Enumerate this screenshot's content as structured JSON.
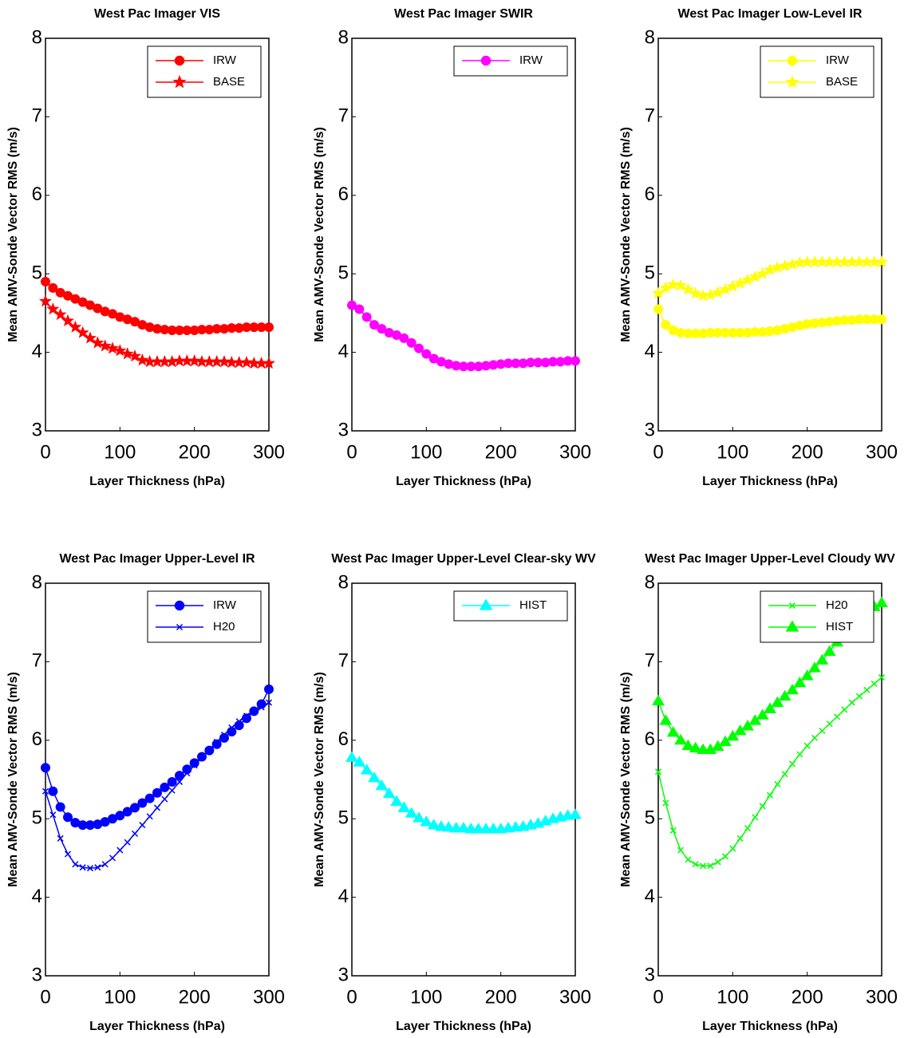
{
  "chart_data": [
    {
      "type": "line",
      "title": "West Pac Imager VIS",
      "xlabel": "Layer Thickness (hPa)",
      "ylabel": "Mean AMV-Sonde Vector RMS (m/s)",
      "x": [
        0,
        10,
        20,
        30,
        40,
        50,
        60,
        70,
        80,
        90,
        100,
        110,
        120,
        130,
        140,
        150,
        160,
        170,
        180,
        190,
        200,
        210,
        220,
        230,
        240,
        250,
        260,
        270,
        280,
        290,
        300
      ],
      "xlim": [
        0,
        300
      ],
      "ylim": [
        3,
        8
      ],
      "xticks": [
        0,
        100,
        200,
        300
      ],
      "yticks": [
        3,
        4,
        5,
        6,
        7,
        8
      ],
      "legend": "upper right",
      "series": [
        {
          "name": "IRW",
          "color": "#ff0000",
          "marker": "circle",
          "values": [
            4.9,
            4.82,
            4.76,
            4.72,
            4.68,
            4.64,
            4.6,
            4.56,
            4.52,
            4.49,
            4.45,
            4.42,
            4.39,
            4.35,
            4.32,
            4.3,
            4.29,
            4.28,
            4.28,
            4.28,
            4.28,
            4.29,
            4.29,
            4.3,
            4.3,
            4.31,
            4.31,
            4.32,
            4.32,
            4.32,
            4.32
          ]
        },
        {
          "name": "BASE",
          "color": "#ff0000",
          "marker": "star",
          "values": [
            4.65,
            4.55,
            4.48,
            4.4,
            4.32,
            4.25,
            4.18,
            4.12,
            4.08,
            4.05,
            4.02,
            3.98,
            3.95,
            3.9,
            3.88,
            3.88,
            3.88,
            3.88,
            3.89,
            3.89,
            3.89,
            3.88,
            3.88,
            3.88,
            3.88,
            3.87,
            3.87,
            3.87,
            3.86,
            3.86,
            3.86
          ]
        }
      ]
    },
    {
      "type": "line",
      "title": "West Pac Imager SWIR",
      "xlabel": "Layer Thickness (hPa)",
      "ylabel": "Mean AMV-Sonde Vector RMS (m/s)",
      "x": [
        0,
        10,
        20,
        30,
        40,
        50,
        60,
        70,
        80,
        90,
        100,
        110,
        120,
        130,
        140,
        150,
        160,
        170,
        180,
        190,
        200,
        210,
        220,
        230,
        240,
        250,
        260,
        270,
        280,
        290,
        300
      ],
      "xlim": [
        0,
        300
      ],
      "ylim": [
        3,
        8
      ],
      "xticks": [
        0,
        100,
        200,
        300
      ],
      "yticks": [
        3,
        4,
        5,
        6,
        7,
        8
      ],
      "legend": "upper right",
      "series": [
        {
          "name": "IRW",
          "color": "#ff00ff",
          "marker": "circle",
          "values": [
            4.6,
            4.55,
            4.45,
            4.35,
            4.3,
            4.25,
            4.22,
            4.18,
            4.12,
            4.05,
            3.98,
            3.92,
            3.88,
            3.85,
            3.83,
            3.82,
            3.82,
            3.82,
            3.83,
            3.84,
            3.85,
            3.86,
            3.86,
            3.86,
            3.87,
            3.87,
            3.87,
            3.88,
            3.88,
            3.89,
            3.89
          ]
        }
      ]
    },
    {
      "type": "line",
      "title": "West Pac Imager Low-Level IR",
      "xlabel": "Layer Thickness (hPa)",
      "ylabel": "Mean AMV-Sonde Vector RMS (m/s)",
      "x": [
        0,
        10,
        20,
        30,
        40,
        50,
        60,
        70,
        80,
        90,
        100,
        110,
        120,
        130,
        140,
        150,
        160,
        170,
        180,
        190,
        200,
        210,
        220,
        230,
        240,
        250,
        260,
        270,
        280,
        290,
        300
      ],
      "xlim": [
        0,
        300
      ],
      "ylim": [
        3,
        8
      ],
      "xticks": [
        0,
        100,
        200,
        300
      ],
      "yticks": [
        3,
        4,
        5,
        6,
        7,
        8
      ],
      "legend": "upper right",
      "series": [
        {
          "name": "IRW",
          "color": "#ffff00",
          "marker": "circle",
          "values": [
            4.55,
            4.35,
            4.28,
            4.25,
            4.24,
            4.24,
            4.24,
            4.25,
            4.25,
            4.25,
            4.25,
            4.25,
            4.25,
            4.26,
            4.26,
            4.27,
            4.28,
            4.3,
            4.32,
            4.34,
            4.36,
            4.37,
            4.38,
            4.39,
            4.4,
            4.41,
            4.41,
            4.42,
            4.42,
            4.42,
            4.42
          ]
        },
        {
          "name": "BASE",
          "color": "#ffff00",
          "marker": "star",
          "values": [
            4.75,
            4.82,
            4.86,
            4.85,
            4.8,
            4.75,
            4.72,
            4.73,
            4.76,
            4.8,
            4.84,
            4.88,
            4.92,
            4.96,
            5.0,
            5.05,
            5.08,
            5.1,
            5.12,
            5.14,
            5.15,
            5.15,
            5.15,
            5.15,
            5.15,
            5.15,
            5.15,
            5.15,
            5.15,
            5.15,
            5.15
          ]
        }
      ]
    },
    {
      "type": "line",
      "title": "West Pac Imager Upper-Level IR",
      "xlabel": "Layer Thickness (hPa)",
      "ylabel": "Mean AMV-Sonde Vector RMS (m/s)",
      "x": [
        0,
        10,
        20,
        30,
        40,
        50,
        60,
        70,
        80,
        90,
        100,
        110,
        120,
        130,
        140,
        150,
        160,
        170,
        180,
        190,
        200,
        210,
        220,
        230,
        240,
        250,
        260,
        270,
        280,
        290,
        300
      ],
      "xlim": [
        0,
        300
      ],
      "ylim": [
        3,
        8
      ],
      "xticks": [
        0,
        100,
        200,
        300
      ],
      "yticks": [
        3,
        4,
        5,
        6,
        7,
        8
      ],
      "legend": "upper right",
      "series": [
        {
          "name": "IRW",
          "color": "#0000ff",
          "marker": "circle",
          "values": [
            5.65,
            5.35,
            5.15,
            5.02,
            4.95,
            4.92,
            4.92,
            4.93,
            4.96,
            5.0,
            5.04,
            5.09,
            5.14,
            5.2,
            5.26,
            5.33,
            5.4,
            5.47,
            5.55,
            5.63,
            5.71,
            5.79,
            5.87,
            5.95,
            6.03,
            6.11,
            6.19,
            6.28,
            6.37,
            6.46,
            6.65
          ]
        },
        {
          "name": "H20",
          "color": "#0000ff",
          "marker": "x",
          "values": [
            5.35,
            5.05,
            4.75,
            4.55,
            4.42,
            4.38,
            4.37,
            4.38,
            4.42,
            4.5,
            4.6,
            4.7,
            4.81,
            4.92,
            5.03,
            5.14,
            5.25,
            5.36,
            5.47,
            5.58,
            5.68,
            5.78,
            5.88,
            5.98,
            6.07,
            6.16,
            6.24,
            6.31,
            6.37,
            6.42,
            6.48
          ]
        }
      ]
    },
    {
      "type": "line",
      "title": "West Pac Imager Upper-Level Clear-sky WV",
      "xlabel": "Layer Thickness (hPa)",
      "ylabel": "Mean AMV-Sonde Vector RMS (m/s)",
      "x": [
        0,
        10,
        20,
        30,
        40,
        50,
        60,
        70,
        80,
        90,
        100,
        110,
        120,
        130,
        140,
        150,
        160,
        170,
        180,
        190,
        200,
        210,
        220,
        230,
        240,
        250,
        260,
        270,
        280,
        290,
        300
      ],
      "xlim": [
        0,
        300
      ],
      "ylim": [
        3,
        8
      ],
      "xticks": [
        0,
        100,
        200,
        300
      ],
      "yticks": [
        3,
        4,
        5,
        6,
        7,
        8
      ],
      "legend": "upper right",
      "series": [
        {
          "name": "HIST",
          "color": "#00ffff",
          "marker": "triangle",
          "values": [
            5.78,
            5.72,
            5.62,
            5.52,
            5.42,
            5.32,
            5.22,
            5.14,
            5.07,
            5.01,
            4.96,
            4.92,
            4.9,
            4.89,
            4.88,
            4.88,
            4.87,
            4.87,
            4.87,
            4.87,
            4.87,
            4.88,
            4.89,
            4.9,
            4.92,
            4.94,
            4.97,
            5.0,
            5.02,
            5.04,
            5.05
          ]
        }
      ]
    },
    {
      "type": "line",
      "title": "West Pac Imager Upper-Level Cloudy WV",
      "xlabel": "Layer Thickness (hPa)",
      "ylabel": "Mean AMV-Sonde Vector RMS (m/s)",
      "x": [
        0,
        10,
        20,
        30,
        40,
        50,
        60,
        70,
        80,
        90,
        100,
        110,
        120,
        130,
        140,
        150,
        160,
        170,
        180,
        190,
        200,
        210,
        220,
        230,
        240,
        250,
        260,
        270,
        280,
        290,
        300
      ],
      "xlim": [
        0,
        300
      ],
      "ylim": [
        3,
        8
      ],
      "xticks": [
        0,
        100,
        200,
        300
      ],
      "yticks": [
        3,
        4,
        5,
        6,
        7,
        8
      ],
      "legend": "upper right",
      "series": [
        {
          "name": "H20",
          "color": "#00ff00",
          "marker": "x",
          "values": [
            5.6,
            5.2,
            4.85,
            4.6,
            4.48,
            4.42,
            4.4,
            4.4,
            4.45,
            4.52,
            4.62,
            4.75,
            4.88,
            5.02,
            5.16,
            5.3,
            5.44,
            5.57,
            5.7,
            5.82,
            5.93,
            6.03,
            6.12,
            6.21,
            6.3,
            6.39,
            6.48,
            6.56,
            6.64,
            6.72,
            6.8
          ]
        },
        {
          "name": "HIST",
          "color": "#00ff00",
          "marker": "triangle",
          "values": [
            6.5,
            6.25,
            6.1,
            6.0,
            5.93,
            5.9,
            5.88,
            5.88,
            5.92,
            5.98,
            6.05,
            6.12,
            6.18,
            6.25,
            6.32,
            6.4,
            6.48,
            6.56,
            6.64,
            6.73,
            6.82,
            6.92,
            7.02,
            7.13,
            7.25,
            7.35,
            7.45,
            7.55,
            7.65,
            7.7,
            7.75
          ]
        }
      ]
    }
  ]
}
